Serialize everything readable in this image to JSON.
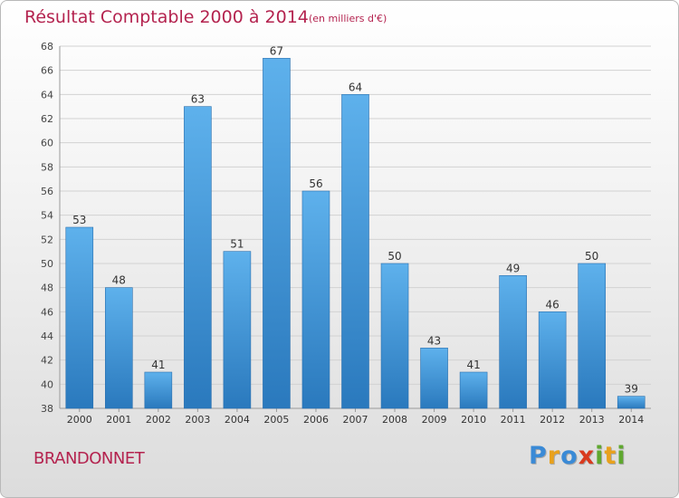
{
  "chart_data": {
    "type": "bar",
    "title": "Résultat Comptable 2000 à 2014",
    "subtitle": "(en milliers d'€)",
    "categories": [
      "2000",
      "2001",
      "2002",
      "2003",
      "2004",
      "2005",
      "2006",
      "2007",
      "2008",
      "2009",
      "2010",
      "2011",
      "2012",
      "2013",
      "2014"
    ],
    "values": [
      53,
      48,
      41,
      63,
      51,
      67,
      56,
      64,
      50,
      43,
      41,
      49,
      46,
      50,
      39
    ],
    "yticks": [
      "38",
      "40",
      "42",
      "44",
      "46",
      "48",
      "50",
      "52",
      "54",
      "56",
      "58",
      "60",
      "62",
      "64",
      "66",
      "68"
    ],
    "ylim": [
      38,
      68
    ],
    "xlabel": "",
    "ylabel": "",
    "grid": true,
    "bar_color": "#3d8fd6"
  },
  "footer": {
    "commune": "BRANDONNET",
    "logo": {
      "letters": [
        "P",
        "r",
        "o",
        "x",
        "i",
        "t",
        "i"
      ],
      "colors": [
        "#3a8ad6",
        "#e8a11d",
        "#3a8ad6",
        "#d93a1e",
        "#5fa82f",
        "#e8a11d",
        "#5fa82f"
      ]
    }
  }
}
